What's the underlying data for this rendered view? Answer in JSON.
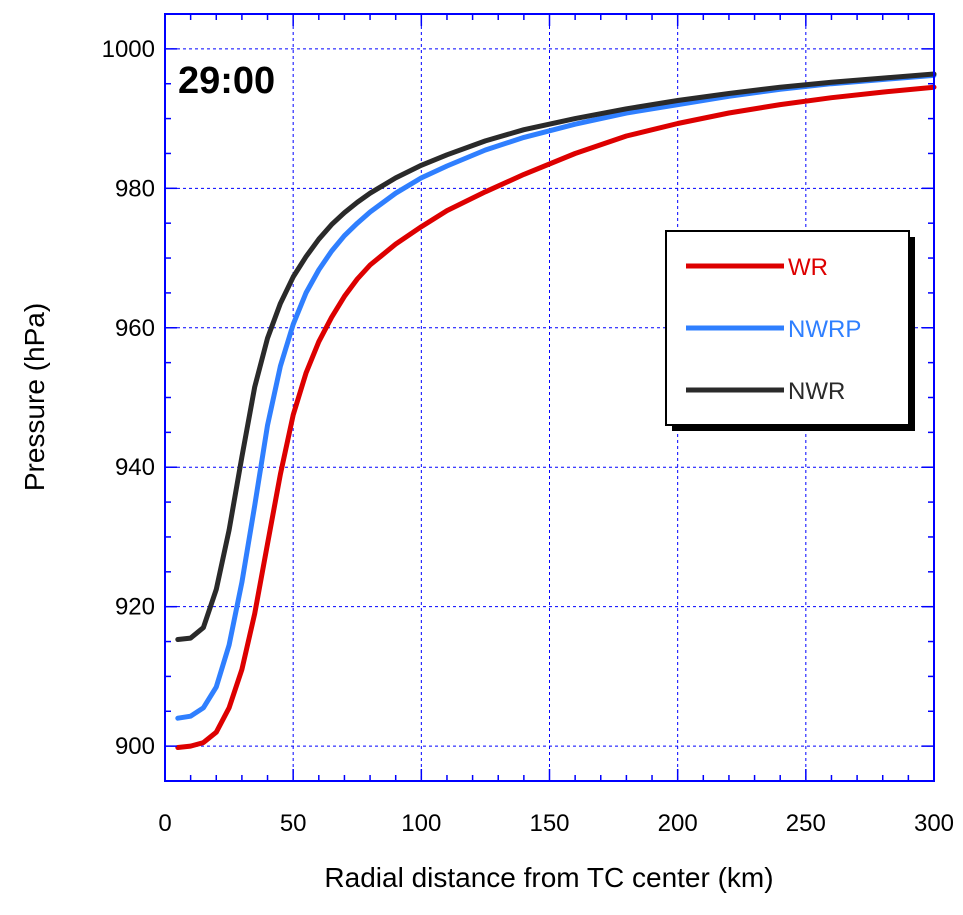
{
  "chart_data": {
    "type": "line",
    "annotation": "29:00",
    "xlabel": "Radial distance from TC center (km)",
    "ylabel": "Pressure (hPa)",
    "xlim": [
      0,
      300
    ],
    "ylim": [
      895,
      1005
    ],
    "xticks": [
      0,
      50,
      100,
      150,
      200,
      250,
      300
    ],
    "yticks": [
      900,
      920,
      940,
      960,
      980,
      1000
    ],
    "grid": true,
    "legend_position": "right",
    "x": [
      5,
      10,
      15,
      20,
      25,
      30,
      35,
      40,
      45,
      50,
      55,
      60,
      65,
      70,
      75,
      80,
      90,
      100,
      110,
      125,
      140,
      160,
      180,
      200,
      220,
      240,
      260,
      280,
      300
    ],
    "series": [
      {
        "name": "WR",
        "color": "#dd0000",
        "values": [
          899.8,
          900.0,
          900.5,
          902.0,
          905.5,
          911.0,
          919.0,
          929.0,
          939.0,
          947.5,
          953.5,
          958.0,
          961.5,
          964.5,
          967.0,
          969.0,
          972.0,
          974.5,
          976.8,
          979.5,
          982.0,
          985.0,
          987.5,
          989.3,
          990.8,
          992.0,
          993.0,
          993.8,
          994.5
        ]
      },
      {
        "name": "NWRP",
        "color": "#2f7fff",
        "values": [
          904.0,
          904.3,
          905.5,
          908.5,
          914.5,
          923.5,
          934.5,
          946.0,
          954.5,
          960.5,
          965.0,
          968.3,
          971.0,
          973.2,
          975.0,
          976.6,
          979.3,
          981.5,
          983.2,
          985.5,
          987.3,
          989.2,
          990.8,
          992.0,
          993.2,
          994.2,
          995.0,
          995.6,
          996.2
        ]
      },
      {
        "name": "NWR",
        "color": "#2a2a2a",
        "values": [
          915.3,
          915.5,
          917.0,
          922.5,
          931.0,
          941.5,
          951.5,
          958.5,
          963.5,
          967.3,
          970.2,
          972.7,
          974.8,
          976.5,
          978.0,
          979.3,
          981.5,
          983.3,
          984.8,
          986.8,
          988.4,
          990.0,
          991.4,
          992.6,
          993.6,
          994.5,
          995.2,
          995.8,
          996.4
        ]
      }
    ]
  }
}
